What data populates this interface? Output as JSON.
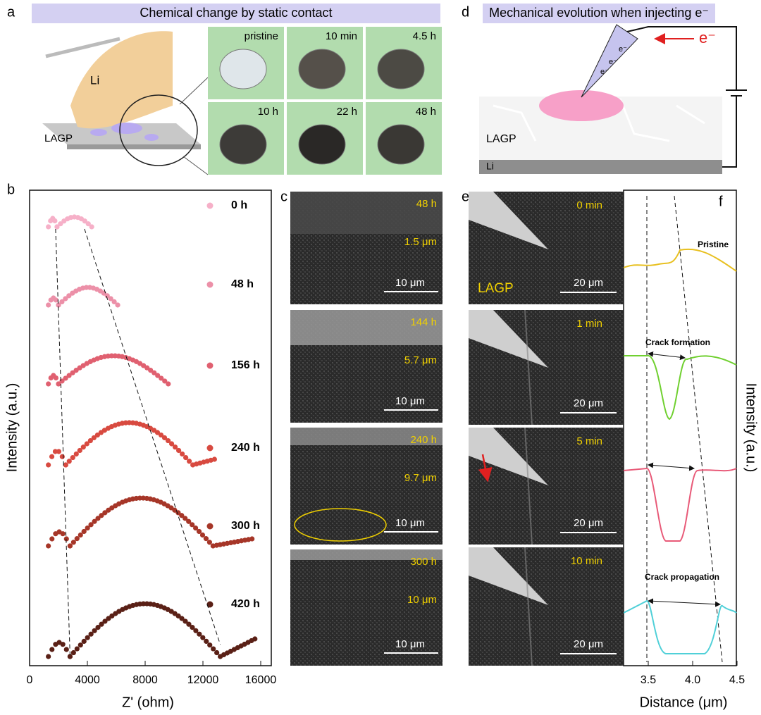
{
  "panel_labels": [
    "a",
    "b",
    "c",
    "d",
    "e",
    "f"
  ],
  "a": {
    "title": "Chemical change by static contact",
    "li": "Li",
    "lagp": "LAGP",
    "photos": [
      "pristine",
      "10 min",
      "4.5 h",
      "10 h",
      "22 h",
      "48 h"
    ]
  },
  "d": {
    "title": "Mechanical evolution when injecting e⁻",
    "electron": "e⁻",
    "tip_electron": "e⁻",
    "lagp": "LAGP",
    "li": "Li"
  },
  "b": {
    "xlabel": "Z' (ohm)",
    "ylabel": "Intensity (a.u.)",
    "xticks": [
      "0",
      "4000",
      "8000",
      "12000",
      "16000"
    ],
    "legend": [
      "0 h",
      "48 h",
      "156 h",
      "240 h",
      "300 h",
      "420 h"
    ]
  },
  "c": {
    "images": [
      {
        "time": "48 h",
        "thickness": "1.5 μm",
        "scale": "10 μm"
      },
      {
        "time": "144 h",
        "thickness": "5.7 μm",
        "scale": "10 μm"
      },
      {
        "time": "240 h",
        "thickness": "9.7 μm",
        "scale": "10 μm"
      },
      {
        "time": "300 h",
        "thickness": "10 μm",
        "scale": "10 μm"
      }
    ]
  },
  "e": {
    "lagp": "LAGP",
    "images": [
      {
        "time": "0 min",
        "scale": "20 μm"
      },
      {
        "time": "1 min",
        "scale": "20 μm"
      },
      {
        "time": "5 min",
        "scale": "20 μm"
      },
      {
        "time": "10 min",
        "scale": "20 μm"
      }
    ]
  },
  "f": {
    "annotations": [
      "Pristine",
      "Crack formation",
      "Crack propagation"
    ],
    "xticks": [
      "3.5",
      "4.0",
      "4.5"
    ],
    "xlabel": "Distance (μm)",
    "ylabel": "Intensity (a.u.)"
  }
}
